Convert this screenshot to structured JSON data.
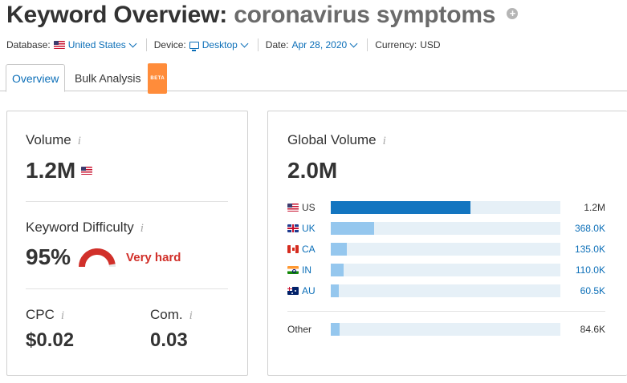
{
  "header": {
    "title_prefix": "Keyword Overview:",
    "keyword": "coronavirus symptoms",
    "add_icon": "plus-circle-icon"
  },
  "filters": {
    "database_label": "Database:",
    "database_value": "United States",
    "device_label": "Device:",
    "device_value": "Desktop",
    "date_label": "Date:",
    "date_value": "Apr 28, 2020",
    "currency_label": "Currency:",
    "currency_value": "USD"
  },
  "tabs": [
    {
      "label": "Overview",
      "active": true
    },
    {
      "label": "Bulk Analysis",
      "badge": "BETA"
    }
  ],
  "left_card": {
    "volume_label": "Volume",
    "volume_value": "1.2M",
    "difficulty_label": "Keyword Difficulty",
    "difficulty_value": "95%",
    "difficulty_percent": 95,
    "difficulty_text": "Very hard",
    "cpc_label": "CPC",
    "cpc_value": "$0.02",
    "com_label": "Com.",
    "com_value": "0.03",
    "info_glyph": "i"
  },
  "right_card": {
    "title": "Global Volume",
    "total": "2.0M",
    "info_glyph": "i",
    "countries": [
      {
        "code": "US",
        "value": "1.2M",
        "fraction": 0.61
      },
      {
        "code": "UK",
        "value": "368.0K",
        "fraction": 0.19
      },
      {
        "code": "CA",
        "value": "135.0K",
        "fraction": 0.07
      },
      {
        "code": "IN",
        "value": "110.0K",
        "fraction": 0.055
      },
      {
        "code": "AU",
        "value": "60.5K",
        "fraction": 0.035
      }
    ],
    "other": {
      "label": "Other",
      "value": "84.6K",
      "fraction": 0.04
    }
  },
  "colors": {
    "link": "#0c6fb8",
    "bar_primary": "#1375c0",
    "bar_secondary": "#95c7ee",
    "bar_track": "#e6f0f7",
    "difficulty": "#d1302a",
    "beta_badge": "#ff8c3a"
  }
}
